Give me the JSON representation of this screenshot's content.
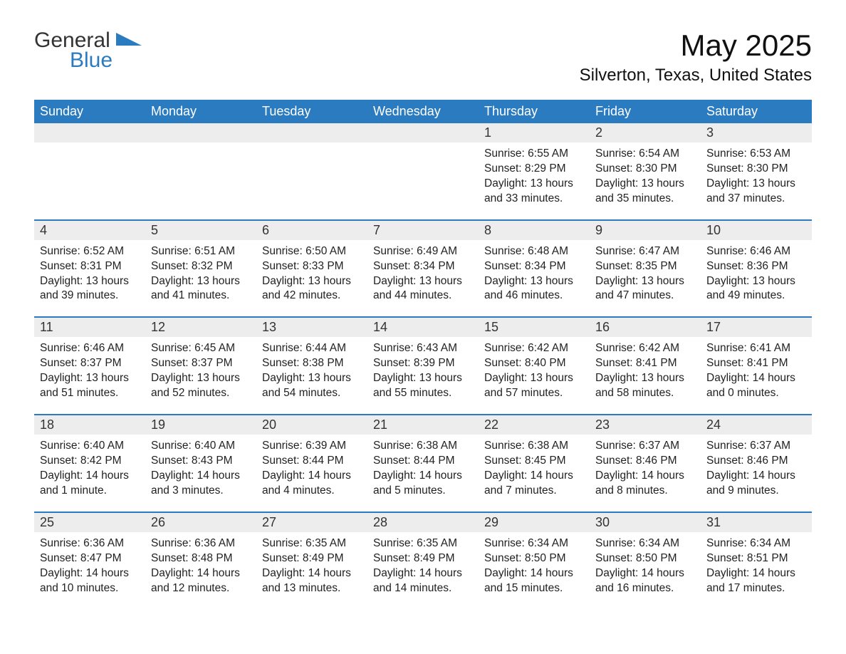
{
  "logo": {
    "text_a": "General",
    "text_b": "Blue"
  },
  "colors": {
    "header_bg": "#2a7bbf",
    "header_text": "#ffffff",
    "daynum_bg": "#ededed",
    "border": "#2a7bbf",
    "body_bg": "#ffffff",
    "text": "#222222",
    "logo_blue": "#2a7bbf"
  },
  "title": "May 2025",
  "location": "Silverton, Texas, United States",
  "weekdays": [
    "Sunday",
    "Monday",
    "Tuesday",
    "Wednesday",
    "Thursday",
    "Friday",
    "Saturday"
  ],
  "weeks": [
    [
      {
        "n": "",
        "sunrise": "",
        "sunset": "",
        "daylight": ""
      },
      {
        "n": "",
        "sunrise": "",
        "sunset": "",
        "daylight": ""
      },
      {
        "n": "",
        "sunrise": "",
        "sunset": "",
        "daylight": ""
      },
      {
        "n": "",
        "sunrise": "",
        "sunset": "",
        "daylight": ""
      },
      {
        "n": "1",
        "sunrise": "Sunrise: 6:55 AM",
        "sunset": "Sunset: 8:29 PM",
        "daylight": "Daylight: 13 hours and 33 minutes."
      },
      {
        "n": "2",
        "sunrise": "Sunrise: 6:54 AM",
        "sunset": "Sunset: 8:30 PM",
        "daylight": "Daylight: 13 hours and 35 minutes."
      },
      {
        "n": "3",
        "sunrise": "Sunrise: 6:53 AM",
        "sunset": "Sunset: 8:30 PM",
        "daylight": "Daylight: 13 hours and 37 minutes."
      }
    ],
    [
      {
        "n": "4",
        "sunrise": "Sunrise: 6:52 AM",
        "sunset": "Sunset: 8:31 PM",
        "daylight": "Daylight: 13 hours and 39 minutes."
      },
      {
        "n": "5",
        "sunrise": "Sunrise: 6:51 AM",
        "sunset": "Sunset: 8:32 PM",
        "daylight": "Daylight: 13 hours and 41 minutes."
      },
      {
        "n": "6",
        "sunrise": "Sunrise: 6:50 AM",
        "sunset": "Sunset: 8:33 PM",
        "daylight": "Daylight: 13 hours and 42 minutes."
      },
      {
        "n": "7",
        "sunrise": "Sunrise: 6:49 AM",
        "sunset": "Sunset: 8:34 PM",
        "daylight": "Daylight: 13 hours and 44 minutes."
      },
      {
        "n": "8",
        "sunrise": "Sunrise: 6:48 AM",
        "sunset": "Sunset: 8:34 PM",
        "daylight": "Daylight: 13 hours and 46 minutes."
      },
      {
        "n": "9",
        "sunrise": "Sunrise: 6:47 AM",
        "sunset": "Sunset: 8:35 PM",
        "daylight": "Daylight: 13 hours and 47 minutes."
      },
      {
        "n": "10",
        "sunrise": "Sunrise: 6:46 AM",
        "sunset": "Sunset: 8:36 PM",
        "daylight": "Daylight: 13 hours and 49 minutes."
      }
    ],
    [
      {
        "n": "11",
        "sunrise": "Sunrise: 6:46 AM",
        "sunset": "Sunset: 8:37 PM",
        "daylight": "Daylight: 13 hours and 51 minutes."
      },
      {
        "n": "12",
        "sunrise": "Sunrise: 6:45 AM",
        "sunset": "Sunset: 8:37 PM",
        "daylight": "Daylight: 13 hours and 52 minutes."
      },
      {
        "n": "13",
        "sunrise": "Sunrise: 6:44 AM",
        "sunset": "Sunset: 8:38 PM",
        "daylight": "Daylight: 13 hours and 54 minutes."
      },
      {
        "n": "14",
        "sunrise": "Sunrise: 6:43 AM",
        "sunset": "Sunset: 8:39 PM",
        "daylight": "Daylight: 13 hours and 55 minutes."
      },
      {
        "n": "15",
        "sunrise": "Sunrise: 6:42 AM",
        "sunset": "Sunset: 8:40 PM",
        "daylight": "Daylight: 13 hours and 57 minutes."
      },
      {
        "n": "16",
        "sunrise": "Sunrise: 6:42 AM",
        "sunset": "Sunset: 8:41 PM",
        "daylight": "Daylight: 13 hours and 58 minutes."
      },
      {
        "n": "17",
        "sunrise": "Sunrise: 6:41 AM",
        "sunset": "Sunset: 8:41 PM",
        "daylight": "Daylight: 14 hours and 0 minutes."
      }
    ],
    [
      {
        "n": "18",
        "sunrise": "Sunrise: 6:40 AM",
        "sunset": "Sunset: 8:42 PM",
        "daylight": "Daylight: 14 hours and 1 minute."
      },
      {
        "n": "19",
        "sunrise": "Sunrise: 6:40 AM",
        "sunset": "Sunset: 8:43 PM",
        "daylight": "Daylight: 14 hours and 3 minutes."
      },
      {
        "n": "20",
        "sunrise": "Sunrise: 6:39 AM",
        "sunset": "Sunset: 8:44 PM",
        "daylight": "Daylight: 14 hours and 4 minutes."
      },
      {
        "n": "21",
        "sunrise": "Sunrise: 6:38 AM",
        "sunset": "Sunset: 8:44 PM",
        "daylight": "Daylight: 14 hours and 5 minutes."
      },
      {
        "n": "22",
        "sunrise": "Sunrise: 6:38 AM",
        "sunset": "Sunset: 8:45 PM",
        "daylight": "Daylight: 14 hours and 7 minutes."
      },
      {
        "n": "23",
        "sunrise": "Sunrise: 6:37 AM",
        "sunset": "Sunset: 8:46 PM",
        "daylight": "Daylight: 14 hours and 8 minutes."
      },
      {
        "n": "24",
        "sunrise": "Sunrise: 6:37 AM",
        "sunset": "Sunset: 8:46 PM",
        "daylight": "Daylight: 14 hours and 9 minutes."
      }
    ],
    [
      {
        "n": "25",
        "sunrise": "Sunrise: 6:36 AM",
        "sunset": "Sunset: 8:47 PM",
        "daylight": "Daylight: 14 hours and 10 minutes."
      },
      {
        "n": "26",
        "sunrise": "Sunrise: 6:36 AM",
        "sunset": "Sunset: 8:48 PM",
        "daylight": "Daylight: 14 hours and 12 minutes."
      },
      {
        "n": "27",
        "sunrise": "Sunrise: 6:35 AM",
        "sunset": "Sunset: 8:49 PM",
        "daylight": "Daylight: 14 hours and 13 minutes."
      },
      {
        "n": "28",
        "sunrise": "Sunrise: 6:35 AM",
        "sunset": "Sunset: 8:49 PM",
        "daylight": "Daylight: 14 hours and 14 minutes."
      },
      {
        "n": "29",
        "sunrise": "Sunrise: 6:34 AM",
        "sunset": "Sunset: 8:50 PM",
        "daylight": "Daylight: 14 hours and 15 minutes."
      },
      {
        "n": "30",
        "sunrise": "Sunrise: 6:34 AM",
        "sunset": "Sunset: 8:50 PM",
        "daylight": "Daylight: 14 hours and 16 minutes."
      },
      {
        "n": "31",
        "sunrise": "Sunrise: 6:34 AM",
        "sunset": "Sunset: 8:51 PM",
        "daylight": "Daylight: 14 hours and 17 minutes."
      }
    ]
  ]
}
